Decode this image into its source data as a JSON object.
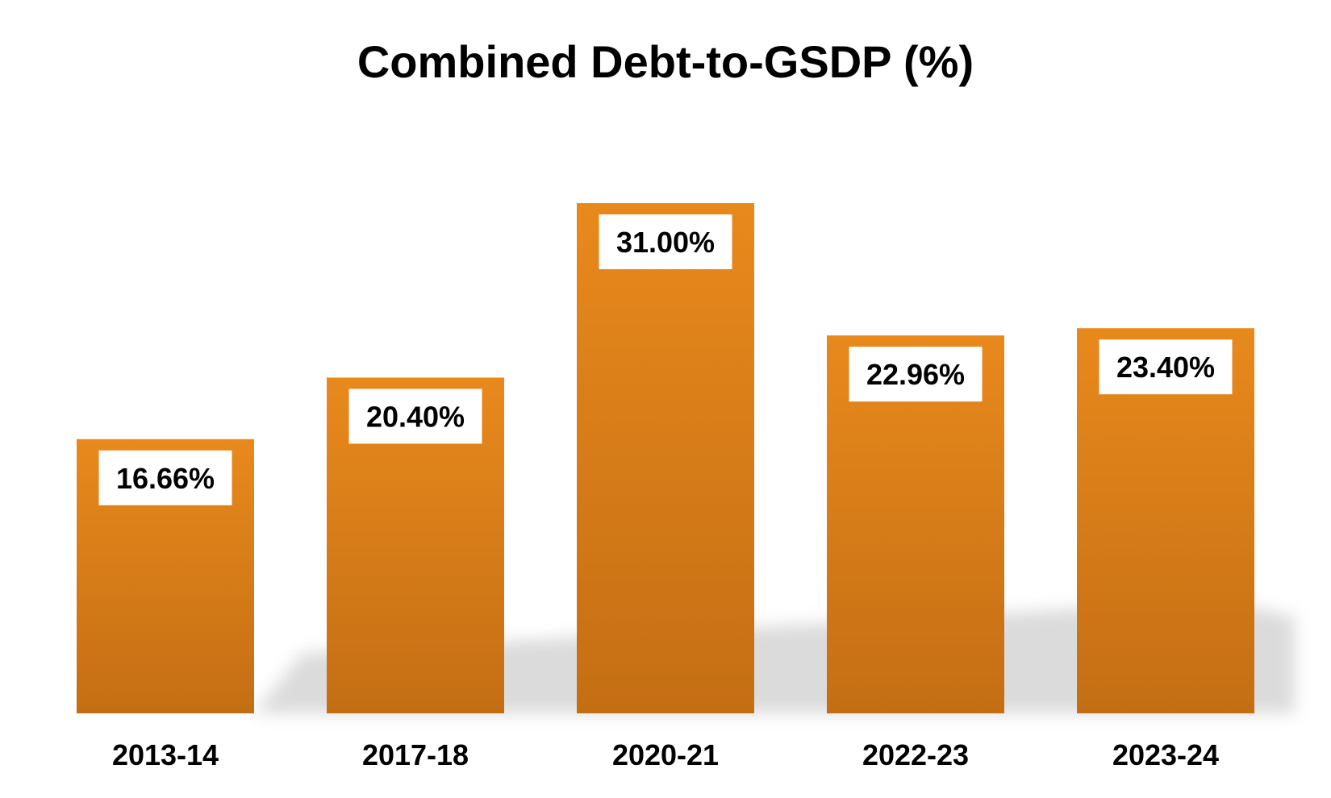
{
  "chart_data": {
    "type": "bar",
    "title": "Combined Debt-to-GSDP (%)",
    "categories": [
      "2013-14",
      "2017-18",
      "2020-21",
      "2022-23",
      "2023-24"
    ],
    "values": [
      16.66,
      20.4,
      31.0,
      22.96,
      23.4
    ],
    "data_labels": [
      "16.66%",
      "20.40%",
      "31.00%",
      "22.96%",
      "23.40%"
    ],
    "xlabel": "",
    "ylabel": "",
    "ylim": [
      0,
      35
    ],
    "grid": false,
    "legend": "none",
    "colors": {
      "bar_top": "#E8891C",
      "bar_bottom": "#C46E14",
      "label_box": "#FFFFFF",
      "shadow": "#CFCFCF"
    }
  }
}
